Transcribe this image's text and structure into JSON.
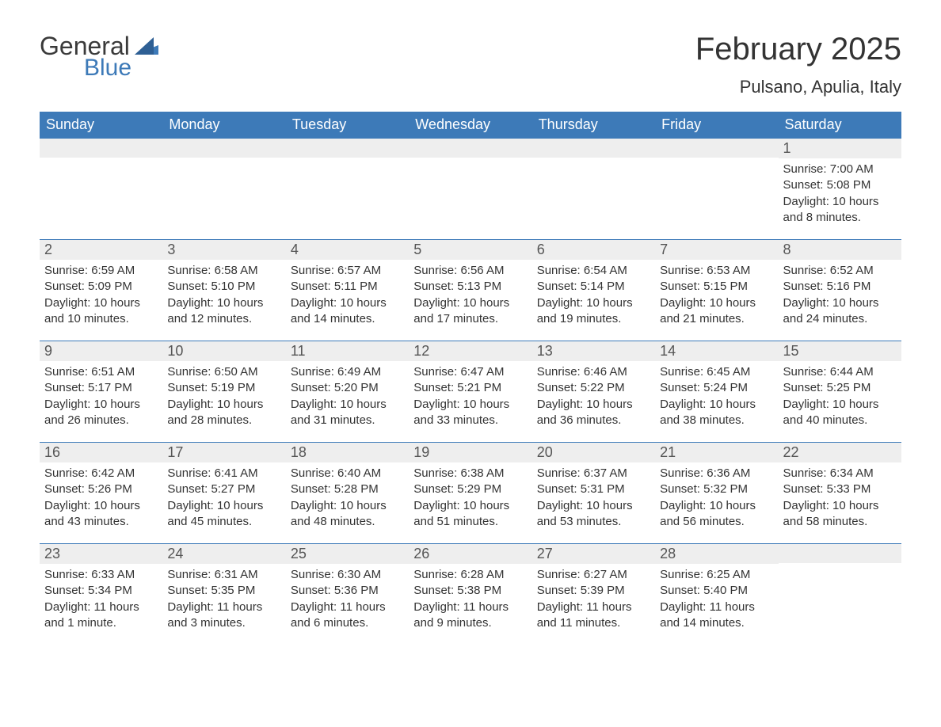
{
  "logo": {
    "text1": "General",
    "text2": "Blue"
  },
  "title": "February 2025",
  "location": "Pulsano, Apulia, Italy",
  "colors": {
    "header_bg": "#3d7ab8",
    "header_text": "#ffffff",
    "daynum_bg": "#eeeeee",
    "border_top": "#3d7ab8",
    "body_text": "#333333",
    "page_bg": "#ffffff"
  },
  "weekdays": [
    "Sunday",
    "Monday",
    "Tuesday",
    "Wednesday",
    "Thursday",
    "Friday",
    "Saturday"
  ],
  "labels": {
    "sunrise": "Sunrise:",
    "sunset": "Sunset:",
    "daylight": "Daylight:"
  },
  "weeks": [
    [
      null,
      null,
      null,
      null,
      null,
      null,
      {
        "d": "1",
        "sr": "7:00 AM",
        "ss": "5:08 PM",
        "dl": "10 hours and 8 minutes."
      }
    ],
    [
      {
        "d": "2",
        "sr": "6:59 AM",
        "ss": "5:09 PM",
        "dl": "10 hours and 10 minutes."
      },
      {
        "d": "3",
        "sr": "6:58 AM",
        "ss": "5:10 PM",
        "dl": "10 hours and 12 minutes."
      },
      {
        "d": "4",
        "sr": "6:57 AM",
        "ss": "5:11 PM",
        "dl": "10 hours and 14 minutes."
      },
      {
        "d": "5",
        "sr": "6:56 AM",
        "ss": "5:13 PM",
        "dl": "10 hours and 17 minutes."
      },
      {
        "d": "6",
        "sr": "6:54 AM",
        "ss": "5:14 PM",
        "dl": "10 hours and 19 minutes."
      },
      {
        "d": "7",
        "sr": "6:53 AM",
        "ss": "5:15 PM",
        "dl": "10 hours and 21 minutes."
      },
      {
        "d": "8",
        "sr": "6:52 AM",
        "ss": "5:16 PM",
        "dl": "10 hours and 24 minutes."
      }
    ],
    [
      {
        "d": "9",
        "sr": "6:51 AM",
        "ss": "5:17 PM",
        "dl": "10 hours and 26 minutes."
      },
      {
        "d": "10",
        "sr": "6:50 AM",
        "ss": "5:19 PM",
        "dl": "10 hours and 28 minutes."
      },
      {
        "d": "11",
        "sr": "6:49 AM",
        "ss": "5:20 PM",
        "dl": "10 hours and 31 minutes."
      },
      {
        "d": "12",
        "sr": "6:47 AM",
        "ss": "5:21 PM",
        "dl": "10 hours and 33 minutes."
      },
      {
        "d": "13",
        "sr": "6:46 AM",
        "ss": "5:22 PM",
        "dl": "10 hours and 36 minutes."
      },
      {
        "d": "14",
        "sr": "6:45 AM",
        "ss": "5:24 PM",
        "dl": "10 hours and 38 minutes."
      },
      {
        "d": "15",
        "sr": "6:44 AM",
        "ss": "5:25 PM",
        "dl": "10 hours and 40 minutes."
      }
    ],
    [
      {
        "d": "16",
        "sr": "6:42 AM",
        "ss": "5:26 PM",
        "dl": "10 hours and 43 minutes."
      },
      {
        "d": "17",
        "sr": "6:41 AM",
        "ss": "5:27 PM",
        "dl": "10 hours and 45 minutes."
      },
      {
        "d": "18",
        "sr": "6:40 AM",
        "ss": "5:28 PM",
        "dl": "10 hours and 48 minutes."
      },
      {
        "d": "19",
        "sr": "6:38 AM",
        "ss": "5:29 PM",
        "dl": "10 hours and 51 minutes."
      },
      {
        "d": "20",
        "sr": "6:37 AM",
        "ss": "5:31 PM",
        "dl": "10 hours and 53 minutes."
      },
      {
        "d": "21",
        "sr": "6:36 AM",
        "ss": "5:32 PM",
        "dl": "10 hours and 56 minutes."
      },
      {
        "d": "22",
        "sr": "6:34 AM",
        "ss": "5:33 PM",
        "dl": "10 hours and 58 minutes."
      }
    ],
    [
      {
        "d": "23",
        "sr": "6:33 AM",
        "ss": "5:34 PM",
        "dl": "11 hours and 1 minute."
      },
      {
        "d": "24",
        "sr": "6:31 AM",
        "ss": "5:35 PM",
        "dl": "11 hours and 3 minutes."
      },
      {
        "d": "25",
        "sr": "6:30 AM",
        "ss": "5:36 PM",
        "dl": "11 hours and 6 minutes."
      },
      {
        "d": "26",
        "sr": "6:28 AM",
        "ss": "5:38 PM",
        "dl": "11 hours and 9 minutes."
      },
      {
        "d": "27",
        "sr": "6:27 AM",
        "ss": "5:39 PM",
        "dl": "11 hours and 11 minutes."
      },
      {
        "d": "28",
        "sr": "6:25 AM",
        "ss": "5:40 PM",
        "dl": "11 hours and 14 minutes."
      },
      null
    ]
  ]
}
